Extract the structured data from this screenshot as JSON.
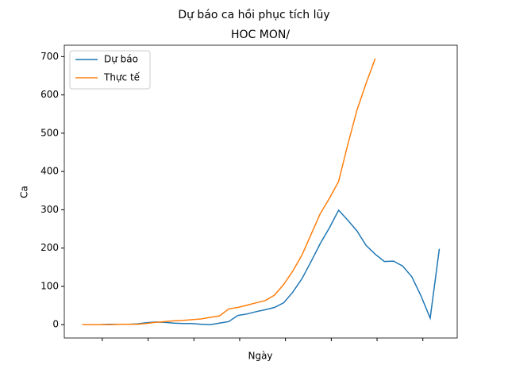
{
  "chart_data": {
    "type": "line",
    "title": "Dự báo ca hồi phục tích lũy",
    "subtitle": "HOC MON/",
    "x_label": "Ngày",
    "y_label": "Ca",
    "series": [
      {
        "name": "Dự báo",
        "color": "#1f77b4",
        "values": [
          0,
          0,
          0,
          1,
          1,
          1,
          2,
          5,
          7,
          6,
          4,
          3,
          3,
          1,
          0,
          4,
          8,
          24,
          28,
          34,
          39,
          45,
          57,
          85,
          120,
          165,
          212,
          253,
          299,
          273,
          245,
          207,
          184,
          165,
          166,
          153,
          125,
          75,
          17,
          198
        ]
      },
      {
        "name": "Thực tế",
        "color": "#ff7f0e",
        "values": [
          0,
          0,
          0,
          0,
          1,
          1,
          1,
          3,
          6,
          8,
          10,
          11,
          13,
          15,
          19,
          23,
          41,
          45,
          51,
          57,
          63,
          77,
          105,
          140,
          182,
          236,
          290,
          330,
          374,
          470,
          560,
          630,
          695
        ]
      }
    ],
    "xlim": [
      -1.95,
      40.95
    ],
    "xticks": [
      2.2,
      7.2,
      12.2,
      17.2,
      22.2,
      27.2,
      32.2,
      37.2
    ],
    "ylim": [
      -34.8,
      729.8
    ],
    "yticks": [
      0,
      100,
      200,
      300,
      400,
      500,
      600,
      700
    ],
    "legend": "upper left"
  }
}
